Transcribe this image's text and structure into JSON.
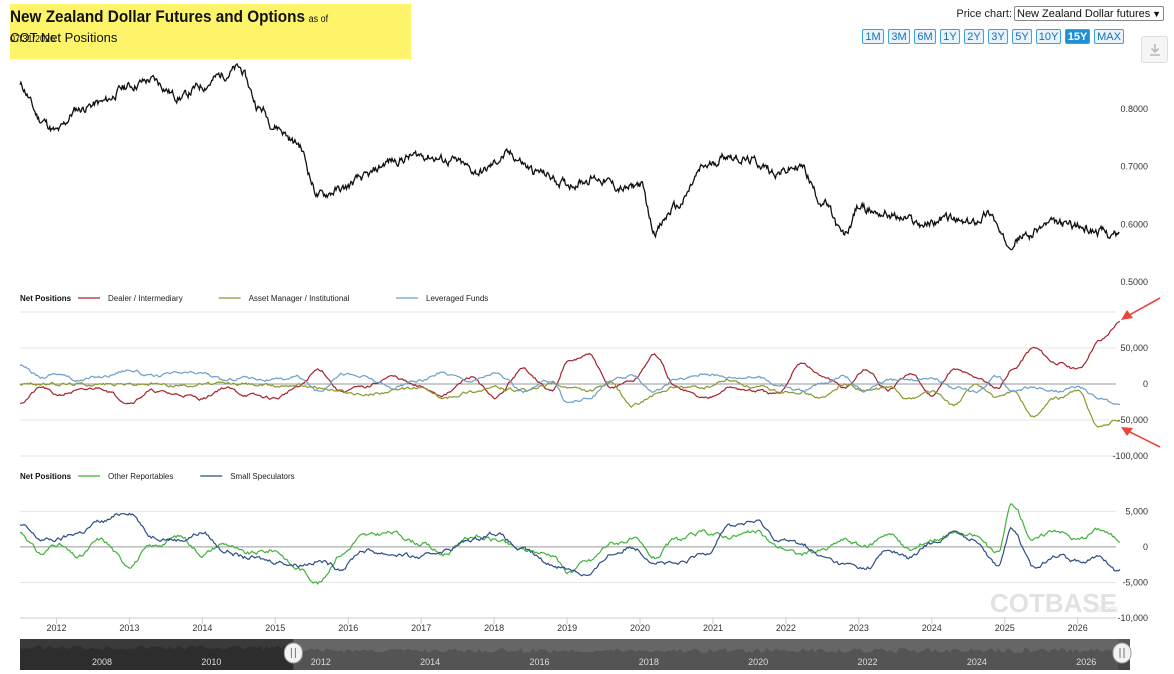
{
  "header": {
    "title": "New Zealand Dollar Futures and Options",
    "as_of": "as of 07/31/2026",
    "subtitle": "COT Net Positions"
  },
  "controls": {
    "price_chart_label": "Price chart:",
    "price_chart_value": "New Zealand Dollar futures",
    "ranges": [
      "1M",
      "3M",
      "6M",
      "1Y",
      "2Y",
      "3Y",
      "5Y",
      "10Y",
      "15Y",
      "MAX"
    ],
    "active_range": "15Y",
    "download_icon": "download-icon"
  },
  "watermark": {
    "brand": "COTBASE",
    "suffix": ".com"
  },
  "colors": {
    "price": "#111111",
    "dealer": "#a4242e",
    "asset_manager": "#8a9a2e",
    "leveraged": "#6f9fc8",
    "other": "#41b23a",
    "small": "#2c4f87",
    "highlight": "#fdf46a",
    "arrow": "#e8463c"
  },
  "chart_data": [
    {
      "type": "line",
      "name_key": "price",
      "ylim": [
        0.5,
        0.85
      ],
      "yticks": [
        "0.8000",
        "0.7000",
        "0.6000",
        "0.5000"
      ],
      "ytick_values": [
        0.8,
        0.7,
        0.6,
        0.5
      ],
      "x": [
        2011.5,
        2011.8,
        2012.0,
        2012.3,
        2012.6,
        2013.0,
        2013.3,
        2013.7,
        2014.0,
        2014.3,
        2014.5,
        2014.8,
        2015.0,
        2015.3,
        2015.6,
        2015.9,
        2016.2,
        2016.6,
        2017.0,
        2017.4,
        2017.8,
        2018.2,
        2018.6,
        2019.0,
        2019.4,
        2019.8,
        2020.0,
        2020.2,
        2020.5,
        2020.9,
        2021.2,
        2021.5,
        2021.9,
        2022.2,
        2022.5,
        2022.8,
        2023.0,
        2023.3,
        2023.6,
        2023.9,
        2024.2,
        2024.5,
        2024.8,
        2025.0,
        2025.3,
        2025.6,
        2025.9,
        2026.2,
        2026.58
      ],
      "series": [
        {
          "name": "",
          "values": [
            0.84,
            0.78,
            0.76,
            0.8,
            0.81,
            0.84,
            0.85,
            0.82,
            0.84,
            0.86,
            0.87,
            0.8,
            0.77,
            0.74,
            0.65,
            0.66,
            0.68,
            0.71,
            0.72,
            0.71,
            0.69,
            0.72,
            0.69,
            0.67,
            0.68,
            0.66,
            0.67,
            0.59,
            0.63,
            0.7,
            0.72,
            0.71,
            0.69,
            0.7,
            0.64,
            0.58,
            0.63,
            0.62,
            0.61,
            0.6,
            0.61,
            0.6,
            0.62,
            0.57,
            0.58,
            0.6,
            0.6,
            0.59,
            0.58
          ]
        }
      ]
    },
    {
      "type": "line",
      "legend_title": "Net Positions",
      "ylim": [
        -100000,
        100000
      ],
      "yticks": [
        "50,000",
        "0",
        "-50,000",
        "-100,000"
      ],
      "ytick_values": [
        50000,
        0,
        -50000,
        -100000
      ],
      "x": [
        2011.5,
        2011.8,
        2012.0,
        2012.3,
        2012.6,
        2013.0,
        2013.3,
        2013.7,
        2014.0,
        2014.3,
        2014.6,
        2015.0,
        2015.3,
        2015.6,
        2015.9,
        2016.2,
        2016.6,
        2017.0,
        2017.3,
        2017.7,
        2018.0,
        2018.4,
        2018.8,
        2019.0,
        2019.3,
        2019.6,
        2019.9,
        2020.2,
        2020.5,
        2020.9,
        2021.2,
        2021.6,
        2021.9,
        2022.2,
        2022.5,
        2022.8,
        2023.1,
        2023.4,
        2023.7,
        2024.0,
        2024.3,
        2024.6,
        2024.9,
        2025.1,
        2025.4,
        2025.7,
        2026.0,
        2026.3,
        2026.58
      ],
      "series": [
        {
          "name": "Dealer / Intermediary",
          "values": [
            -25000,
            -5000,
            -15000,
            -10000,
            -5000,
            -25000,
            -10000,
            -15000,
            -20000,
            -5000,
            -15000,
            -20000,
            -5000,
            20000,
            -10000,
            -5000,
            10000,
            -5000,
            -15000,
            10000,
            -20000,
            20000,
            -10000,
            30000,
            40000,
            -5000,
            5000,
            40000,
            -5000,
            -20000,
            -5000,
            -10000,
            -15000,
            30000,
            10000,
            -5000,
            20000,
            -10000,
            15000,
            -15000,
            20000,
            10000,
            -5000,
            20000,
            50000,
            30000,
            20000,
            60000,
            85000
          ]
        },
        {
          "name": "Asset Manager / Institutional",
          "values": [
            0,
            0,
            0,
            0,
            0,
            0,
            0,
            -2000,
            0,
            0,
            0,
            -3000,
            0,
            -5000,
            -10000,
            -15000,
            -10000,
            -5000,
            -20000,
            -10000,
            -5000,
            -10000,
            0,
            -5000,
            -10000,
            0,
            -30000,
            -15000,
            -5000,
            -5000,
            5000,
            -5000,
            -10000,
            -10000,
            -20000,
            0,
            -10000,
            -5000,
            -20000,
            -10000,
            -30000,
            0,
            -20000,
            -10000,
            -45000,
            -20000,
            -10000,
            -60000,
            -50000
          ]
        },
        {
          "name": "Leveraged Funds",
          "values": [
            25000,
            10000,
            15000,
            5000,
            10000,
            20000,
            10000,
            15000,
            15000,
            5000,
            10000,
            5000,
            10000,
            -10000,
            15000,
            10000,
            -5000,
            5000,
            15000,
            5000,
            15000,
            -10000,
            5000,
            -25000,
            -20000,
            5000,
            10000,
            -10000,
            5000,
            15000,
            10000,
            10000,
            0,
            -10000,
            0,
            10000,
            -10000,
            5000,
            5000,
            10000,
            -5000,
            -10000,
            10000,
            -10000,
            -5000,
            -10000,
            -5000,
            -20000,
            -30000
          ]
        }
      ]
    },
    {
      "type": "line",
      "legend_title": "Net Positions",
      "ylim": [
        -10000,
        8000
      ],
      "yticks": [
        "5,000",
        "0",
        "-5,000",
        "-10,000"
      ],
      "ytick_values": [
        5000,
        0,
        -5000,
        -10000
      ],
      "x": [
        2011.5,
        2011.8,
        2012.0,
        2012.3,
        2012.6,
        2013.0,
        2013.3,
        2013.7,
        2014.0,
        2014.3,
        2014.6,
        2015.0,
        2015.3,
        2015.6,
        2015.9,
        2016.2,
        2016.6,
        2017.0,
        2017.3,
        2017.7,
        2018.0,
        2018.4,
        2018.8,
        2019.0,
        2019.3,
        2019.6,
        2019.9,
        2020.2,
        2020.5,
        2020.9,
        2021.2,
        2021.6,
        2021.9,
        2022.2,
        2022.5,
        2022.8,
        2023.1,
        2023.4,
        2023.7,
        2024.0,
        2024.3,
        2024.6,
        2024.9,
        2025.1,
        2025.4,
        2025.7,
        2026.0,
        2026.3,
        2026.58
      ],
      "series": [
        {
          "name": "Other Reportables",
          "values": [
            2000,
            -1000,
            500,
            -1500,
            1000,
            -2500,
            0,
            1500,
            -1000,
            500,
            -1000,
            -500,
            -3000,
            -5000,
            -1000,
            1500,
            2000,
            500,
            -1000,
            1500,
            1000,
            -500,
            -1000,
            -3500,
            -2000,
            500,
            1000,
            -1500,
            1000,
            2000,
            1500,
            2000,
            0,
            -1000,
            -500,
            1000,
            0,
            2000,
            -500,
            1000,
            2000,
            1500,
            -1000,
            6000,
            1000,
            2500,
            1000,
            2500,
            1000
          ]
        },
        {
          "name": "Small Speculators",
          "values": [
            3000,
            1000,
            1000,
            2000,
            3500,
            5000,
            1500,
            1000,
            2000,
            -500,
            -1500,
            -2000,
            -2500,
            -2000,
            -3000,
            -500,
            -1000,
            -1500,
            -500,
            1000,
            2000,
            -500,
            -2500,
            -3000,
            -4000,
            -1000,
            0,
            -2000,
            -2500,
            -1000,
            3000,
            3500,
            1000,
            500,
            -1500,
            -2500,
            -3000,
            -500,
            -1500,
            500,
            2000,
            1000,
            -2500,
            2500,
            -3000,
            -1000,
            -2000,
            -1500,
            -3500
          ]
        }
      ]
    }
  ],
  "x_axis": {
    "ticks": [
      "2012",
      "2013",
      "2014",
      "2015",
      "2016",
      "2017",
      "2018",
      "2019",
      "2020",
      "2021",
      "2022",
      "2023",
      "2024",
      "2025",
      "2026"
    ],
    "tick_values": [
      2012,
      2013,
      2014,
      2015,
      2016,
      2017,
      2018,
      2019,
      2020,
      2021,
      2022,
      2023,
      2024,
      2025,
      2026
    ]
  },
  "navigator": {
    "ticks": [
      "2008",
      "2010",
      "2012",
      "2014",
      "2016",
      "2018",
      "2020",
      "2022",
      "2024",
      "2026"
    ],
    "tick_values": [
      2008,
      2010,
      2012,
      2014,
      2016,
      2018,
      2020,
      2022,
      2024,
      2026
    ],
    "range": [
      2006.5,
      2026.8
    ],
    "window": [
      2011.5,
      2026.58
    ]
  }
}
